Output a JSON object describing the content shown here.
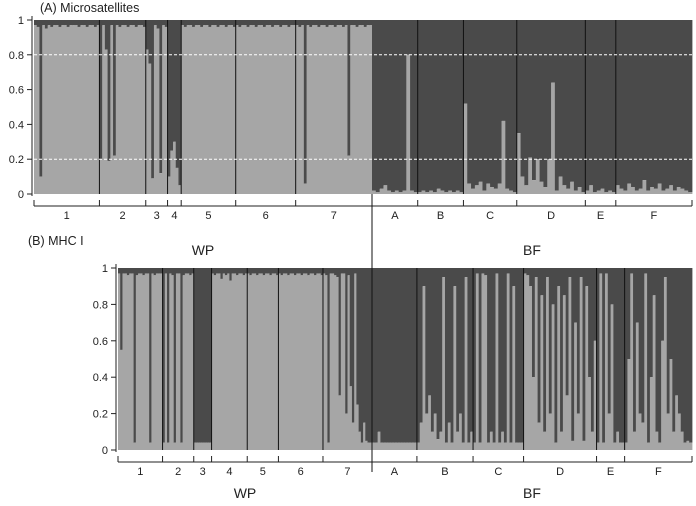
{
  "colors": {
    "light": "#a6a6a6",
    "dark": "#4a4a4a",
    "axis": "#222222",
    "divider": "#111111",
    "dashed": "#ffffff"
  },
  "chart_data": [
    {
      "type": "bar",
      "title": "(A) Microsatellites",
      "ylim": [
        0,
        1
      ],
      "yticks": [
        "0",
        "0.2",
        "0.4",
        "0.6",
        "0.8",
        "1"
      ],
      "reference_lines": [
        0.2,
        0.8
      ],
      "groups": [
        {
          "label": "WP",
          "populations": [
            "1",
            "2",
            "3",
            "4",
            "5",
            "6",
            "7"
          ]
        },
        {
          "label": "BF",
          "populations": [
            "A",
            "B",
            "C",
            "D",
            "E",
            "F"
          ]
        }
      ],
      "populations": [
        {
          "label": "1",
          "group": "WP",
          "n": 24,
          "light_fraction": [
            0.97,
            0.96,
            0.1,
            0.97,
            0.95,
            0.97,
            0.96,
            0.97,
            0.97,
            0.96,
            0.97,
            0.97,
            0.96,
            0.97,
            0.97,
            0.97,
            0.96,
            0.97,
            0.97,
            0.96,
            0.97,
            0.97,
            0.96,
            0.97
          ]
        },
        {
          "label": "2",
          "group": "WP",
          "n": 17,
          "light_fraction": [
            0.2,
            0.97,
            0.83,
            0.19,
            0.97,
            0.22,
            0.97,
            0.96,
            0.97,
            0.97,
            0.96,
            0.97,
            0.97,
            0.96,
            0.97,
            0.97,
            0.96
          ]
        },
        {
          "label": "3",
          "group": "WP",
          "n": 8,
          "light_fraction": [
            0.83,
            0.75,
            0.09,
            0.97,
            0.95,
            0.12,
            0.97,
            0.96
          ]
        },
        {
          "label": "4",
          "group": "WP",
          "n": 5,
          "light_fraction": [
            0.1,
            0.25,
            0.3,
            0.15,
            0.05
          ]
        },
        {
          "label": "5",
          "group": "WP",
          "n": 20,
          "light_fraction": [
            0.97,
            0.96,
            0.97,
            0.97,
            0.96,
            0.97,
            0.97,
            0.96,
            0.97,
            0.97,
            0.96,
            0.97,
            0.97,
            0.96,
            0.97,
            0.97,
            0.96,
            0.97,
            0.97,
            0.96
          ]
        },
        {
          "label": "6",
          "group": "WP",
          "n": 22,
          "light_fraction": [
            0.97,
            0.96,
            0.97,
            0.97,
            0.96,
            0.97,
            0.97,
            0.96,
            0.97,
            0.97,
            0.96,
            0.97,
            0.97,
            0.96,
            0.97,
            0.97,
            0.96,
            0.97,
            0.97,
            0.96,
            0.97,
            0.97
          ]
        },
        {
          "label": "7",
          "group": "WP",
          "n": 28,
          "light_fraction": [
            0.97,
            0.96,
            0.97,
            0.06,
            0.97,
            0.96,
            0.97,
            0.97,
            0.96,
            0.97,
            0.97,
            0.96,
            0.97,
            0.97,
            0.96,
            0.97,
            0.97,
            0.96,
            0.97,
            0.22,
            0.97,
            0.97,
            0.96,
            0.97,
            0.97,
            0.96,
            0.97,
            0.97
          ]
        },
        {
          "label": "A",
          "group": "BF",
          "n": 12,
          "light_fraction": [
            0.02,
            0.01,
            0.03,
            0.05,
            0.02,
            0.01,
            0.02,
            0.01,
            0.02,
            0.8,
            0.02,
            0.01
          ]
        },
        {
          "label": "B",
          "group": "BF",
          "n": 12,
          "light_fraction": [
            0.01,
            0.02,
            0.01,
            0.02,
            0.01,
            0.03,
            0.02,
            0.01,
            0.02,
            0.01,
            0.02,
            0.01
          ]
        },
        {
          "label": "C",
          "group": "BF",
          "n": 14,
          "light_fraction": [
            0.52,
            0.06,
            0.03,
            0.05,
            0.07,
            0.02,
            0.06,
            0.04,
            0.03,
            0.06,
            0.42,
            0.03,
            0.02,
            0.01
          ]
        },
        {
          "label": "D",
          "group": "BF",
          "n": 18,
          "light_fraction": [
            0.35,
            0.1,
            0.05,
            0.21,
            0.08,
            0.2,
            0.07,
            0.04,
            0.2,
            0.64,
            0.02,
            0.1,
            0.05,
            0.03,
            0.07,
            0.02,
            0.04,
            0.01
          ]
        },
        {
          "label": "E",
          "group": "BF",
          "n": 8,
          "light_fraction": [
            0.02,
            0.05,
            0.01,
            0.02,
            0.03,
            0.01,
            0.02,
            0.01
          ]
        },
        {
          "label": "F",
          "group": "BF",
          "n": 20,
          "light_fraction": [
            0.05,
            0.03,
            0.02,
            0.06,
            0.04,
            0.02,
            0.03,
            0.08,
            0.02,
            0.04,
            0.03,
            0.06,
            0.02,
            0.03,
            0.05,
            0.02,
            0.04,
            0.03,
            0.02,
            0.01
          ]
        }
      ]
    },
    {
      "type": "bar",
      "title": "(B) MHC I",
      "ylim": [
        0,
        1
      ],
      "yticks": [
        "0",
        "0.2",
        "0.4",
        "0.6",
        "0.8",
        "1"
      ],
      "groups": [
        {
          "label": "WP",
          "populations": [
            "1",
            "2",
            "3",
            "4",
            "5",
            "6",
            "7"
          ]
        },
        {
          "label": "BF",
          "populations": [
            "A",
            "B",
            "C",
            "D",
            "E",
            "F"
          ]
        }
      ],
      "populations": [
        {
          "label": "1",
          "group": "WP",
          "n": 20,
          "light_fraction": [
            0.97,
            0.55,
            0.97,
            0.97,
            0.96,
            0.97,
            0.97,
            0.04,
            0.96,
            0.97,
            0.97,
            0.96,
            0.97,
            0.97,
            0.04,
            0.97,
            0.96,
            0.97,
            0.97,
            0.97
          ]
        },
        {
          "label": "2",
          "group": "WP",
          "n": 14,
          "light_fraction": [
            0.04,
            0.97,
            0.04,
            0.97,
            0.96,
            0.04,
            0.97,
            0.97,
            0.04,
            0.96,
            0.97,
            0.97,
            0.96,
            0.97
          ]
        },
        {
          "label": "3",
          "group": "WP",
          "n": 8,
          "light_fraction": [
            0.04,
            0.04,
            0.04,
            0.04,
            0.04,
            0.04,
            0.04,
            0.04
          ]
        },
        {
          "label": "4",
          "group": "WP",
          "n": 16,
          "light_fraction": [
            0.97,
            0.96,
            0.97,
            0.97,
            0.94,
            0.97,
            0.96,
            0.97,
            0.93,
            0.97,
            0.97,
            0.96,
            0.97,
            0.97,
            0.96,
            0.97
          ]
        },
        {
          "label": "5",
          "group": "WP",
          "n": 14,
          "light_fraction": [
            0.97,
            0.96,
            0.97,
            0.97,
            0.96,
            0.97,
            0.97,
            0.96,
            0.97,
            0.97,
            0.96,
            0.97,
            0.97,
            0.96
          ]
        },
        {
          "label": "6",
          "group": "WP",
          "n": 20,
          "light_fraction": [
            0.97,
            0.96,
            0.97,
            0.97,
            0.96,
            0.97,
            0.97,
            0.96,
            0.97,
            0.97,
            0.96,
            0.97,
            0.97,
            0.96,
            0.97,
            0.97,
            0.96,
            0.97,
            0.97,
            0.96
          ]
        },
        {
          "label": "7",
          "group": "WP",
          "n": 22,
          "light_fraction": [
            0.97,
            0.96,
            0.04,
            0.97,
            0.97,
            0.96,
            0.95,
            0.3,
            0.97,
            0.97,
            0.2,
            0.96,
            0.35,
            0.15,
            0.97,
            0.25,
            0.1,
            0.04,
            0.15,
            0.05,
            0.04,
            0.04
          ]
        },
        {
          "label": "A",
          "group": "BF",
          "n": 16,
          "light_fraction": [
            0.04,
            0.04,
            0.1,
            0.04,
            0.04,
            0.04,
            0.04,
            0.04,
            0.04,
            0.04,
            0.04,
            0.04,
            0.04,
            0.04,
            0.04,
            0.04
          ]
        },
        {
          "label": "B",
          "group": "BF",
          "n": 20,
          "light_fraction": [
            0.04,
            0.15,
            0.9,
            0.2,
            0.3,
            0.1,
            0.2,
            0.06,
            0.1,
            0.95,
            0.04,
            0.15,
            0.04,
            0.9,
            0.1,
            0.2,
            0.04,
            0.95,
            0.04,
            0.1
          ]
        },
        {
          "label": "C",
          "group": "BF",
          "n": 18,
          "light_fraction": [
            0.04,
            0.97,
            0.04,
            0.97,
            0.96,
            0.04,
            0.1,
            0.04,
            0.97,
            0.04,
            0.1,
            0.04,
            0.97,
            0.04,
            0.9,
            0.04,
            0.04,
            0.04
          ]
        },
        {
          "label": "D",
          "group": "BF",
          "n": 26,
          "light_fraction": [
            0.97,
            0.96,
            0.9,
            0.4,
            0.95,
            0.15,
            0.85,
            0.1,
            0.95,
            0.2,
            0.8,
            0.04,
            0.9,
            0.1,
            0.85,
            0.3,
            0.95,
            0.05,
            0.7,
            0.2,
            0.95,
            0.05,
            0.9,
            0.4,
            0.1,
            0.6
          ]
        },
        {
          "label": "E",
          "group": "BF",
          "n": 10,
          "light_fraction": [
            0.04,
            0.97,
            0.04,
            0.97,
            0.2,
            0.8,
            0.04,
            0.1,
            0.04,
            0.04
          ]
        },
        {
          "label": "F",
          "group": "BF",
          "n": 24,
          "light_fraction": [
            0.04,
            0.5,
            0.97,
            0.1,
            0.7,
            0.2,
            0.15,
            0.97,
            0.04,
            0.4,
            0.85,
            0.1,
            0.04,
            0.6,
            0.95,
            0.2,
            0.5,
            0.1,
            0.3,
            0.2,
            0.1,
            0.04,
            0.05,
            0.04
          ]
        }
      ]
    }
  ]
}
